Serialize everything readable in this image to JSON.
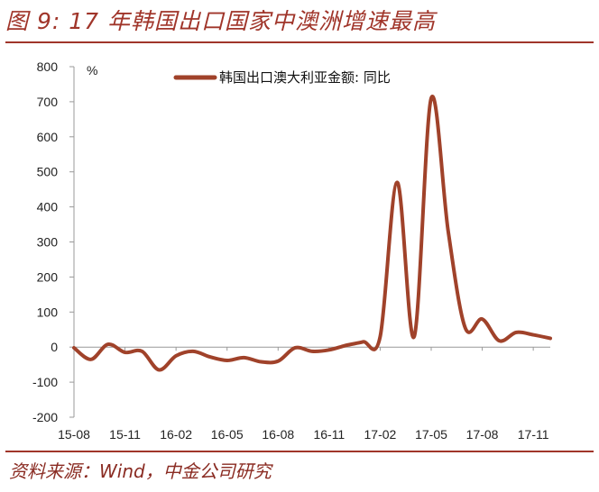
{
  "header": {
    "title": "图 9: 17 年韩国出口国家中澳洲增速最高"
  },
  "footer": {
    "source": "资料来源：Wind，中金公司研究"
  },
  "colors": {
    "accent": "#a0352a",
    "series": "#a0422a",
    "axis": "#999999"
  },
  "chart_data": {
    "type": "line",
    "unit": "%",
    "ylim": [
      -200,
      800
    ],
    "yticks": [
      -200,
      -100,
      0,
      100,
      200,
      300,
      400,
      500,
      600,
      700,
      800
    ],
    "xtick_labels": [
      "15-08",
      "15-11",
      "16-02",
      "16-05",
      "16-08",
      "16-11",
      "17-02",
      "17-05",
      "17-08",
      "17-11"
    ],
    "grid": false,
    "legend_position": "top-center",
    "series": [
      {
        "name": "韩国出口澳大利亚金额: 同比",
        "x": [
          "15-08",
          "15-09",
          "15-10",
          "15-11",
          "15-12",
          "16-01",
          "16-02",
          "16-03",
          "16-04",
          "16-05",
          "16-06",
          "16-07",
          "16-08",
          "16-09",
          "16-10",
          "16-11",
          "16-12",
          "17-01",
          "17-02",
          "17-03",
          "17-04",
          "17-05",
          "17-06",
          "17-07",
          "17-08",
          "17-09",
          "17-10",
          "17-11",
          "17-12"
        ],
        "values": [
          -2,
          -35,
          8,
          -15,
          -12,
          -65,
          -25,
          -12,
          -28,
          -38,
          -30,
          -42,
          -40,
          -2,
          -12,
          -8,
          5,
          15,
          30,
          470,
          30,
          710,
          330,
          55,
          80,
          18,
          42,
          35,
          25
        ]
      }
    ]
  }
}
